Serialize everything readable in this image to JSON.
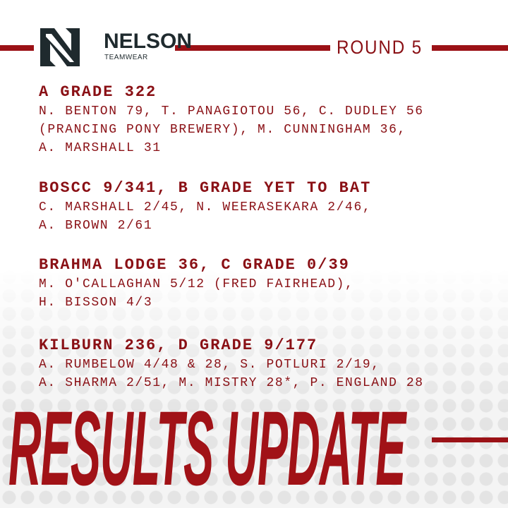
{
  "brand": {
    "name": "NELSON",
    "tagline": "TEAMWEAR",
    "logo_icon": "nelson-n-logo"
  },
  "round": "ROUND 5",
  "colors": {
    "accent": "#9b1116",
    "text": "#8a1015",
    "logo": "#1f2a2e"
  },
  "sections": [
    {
      "heading": "A GRADE 322",
      "lines": [
        "N. BENTON 79, T. PANAGIOTOU 56, C. DUDLEY 56",
        "(PRANCING PONY BREWERY), M. CUNNINGHAM 36,",
        "A. MARSHALL 31"
      ]
    },
    {
      "heading": "BOSCC 9/341, B GRADE YET TO BAT",
      "lines": [
        "C. MARSHALL 2/45, N. WEERASEKARA 2/46,",
        "A. BROWN 2/61"
      ]
    },
    {
      "heading": "BRAHMA LODGE 36, C GRADE 0/39",
      "lines": [
        "M. O'CALLAGHAN 5/12 (FRED FAIRHEAD),",
        "H. BISSON 4/3"
      ]
    },
    {
      "heading": "KILBURN 236, D GRADE 9/177",
      "lines": [
        "A. RUMBELOW 4/48 & 28, S. POTLURI 2/19,",
        "A. SHARMA 2/51, M. MISTRY 28*, P. ENGLAND 28"
      ]
    }
  ],
  "title": "RESULTS UPDATE"
}
